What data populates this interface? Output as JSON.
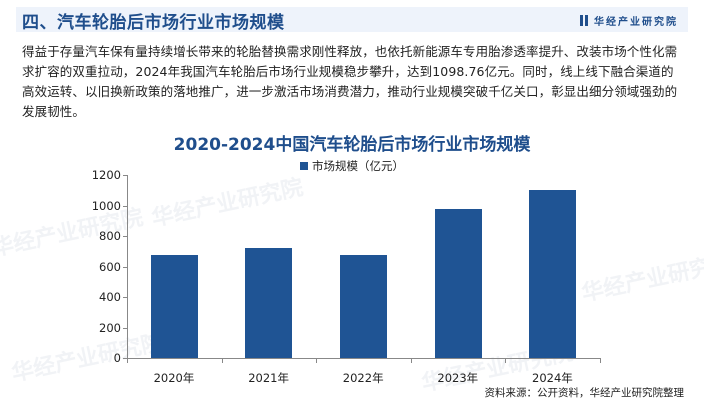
{
  "header": {
    "title": "四、汽车轮胎后市场行业市场规模",
    "brand": "华经产业研究院"
  },
  "paragraph": "得益于存量汽车保有量持续增长带来的轮胎替换需求刚性释放，也依托新能源车专用胎渗透率提升、改装市场个性化需求扩容的双重拉动，2024年我国汽车轮胎后市场行业规模稳步攀升，达到1098.76亿元。同时，线上线下融合渠道的高效运转、以旧换新政策的落地推广，进一步激活市场消费潜力，推动行业规模突破千亿关口，彰显出细分领域强劲的发展韧性。",
  "watermark": "华经产业研究院",
  "colors": {
    "bar": "#1f5494",
    "title": "#1f4e8c",
    "header_bg": "#eef3fb"
  },
  "chart_data": {
    "type": "bar",
    "title": "2020-2024中国汽车轮胎后市场行业市场规模",
    "xlabel": "",
    "ylabel": "",
    "categories": [
      "2020年",
      "2021年",
      "2022年",
      "2023年",
      "2024年"
    ],
    "series": [
      {
        "name": "市场规模（亿元）",
        "values": [
          675,
          723,
          675,
          977,
          1098.76
        ]
      }
    ],
    "ylim": [
      0,
      1200
    ],
    "yticks": [
      "0",
      "200",
      "400",
      "600",
      "800",
      "1000",
      "1200"
    ],
    "grid": false,
    "legend_position": "top"
  },
  "source": "资料来源：公开资料，华经产业研究院整理"
}
